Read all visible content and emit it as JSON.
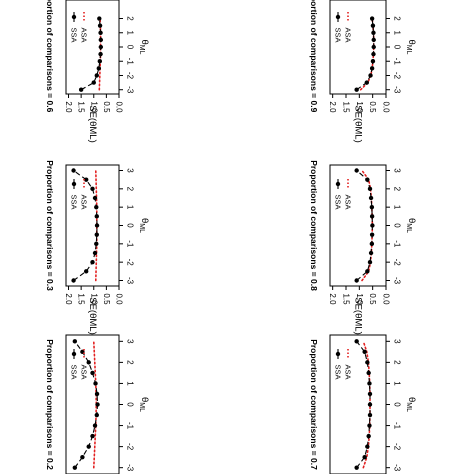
{
  "figure": {
    "orientation": "rotated-90-clockwise",
    "x_axis_label_base": "θ",
    "x_axis_label_sub": "ML",
    "y_axis_label": "SE(θML)",
    "legend_entries": [
      "SSA",
      "ASA"
    ]
  },
  "colors": {
    "ssa": "#000000",
    "asa": "#e32020",
    "frame": "#000000",
    "background": "#ffffff"
  },
  "chart_data": [
    {
      "type": "line",
      "title": "Proportion of comparisons = 0.2",
      "xlabel": "θML",
      "ylabel": "SE(θML)",
      "xlim": [
        -3.3,
        3.3
      ],
      "ylim": [
        0,
        2.1
      ],
      "x_ticks": [
        "-3",
        "-2",
        "-1",
        "0",
        "1",
        "2",
        "3"
      ],
      "y_ticks": [
        "0.0",
        "0.5",
        "1.0",
        "1.5",
        "2.0"
      ],
      "legend": "top-right",
      "grid": false,
      "series": [
        {
          "name": "SSA",
          "style": "black dots with dashed line",
          "x": [
            -3.0,
            -2.5,
            -2.0,
            -1.5,
            -1.0,
            -0.5,
            0.0,
            0.5,
            1.0,
            1.5,
            2.0,
            2.5,
            3.0
          ],
          "y": [
            1.75,
            1.45,
            1.2,
            1.05,
            0.95,
            0.88,
            0.85,
            0.87,
            0.93,
            1.05,
            1.2,
            1.45,
            1.75
          ]
        },
        {
          "name": "ASA",
          "style": "red dotted",
          "x": [
            -3.0,
            -2.5,
            -2.0,
            -1.5,
            -1.0,
            -0.5,
            0.0,
            0.5,
            1.0,
            1.5,
            2.0,
            2.5,
            3.0
          ],
          "y": [
            1.0,
            0.98,
            0.96,
            0.94,
            0.92,
            0.91,
            0.9,
            0.91,
            0.92,
            0.94,
            0.96,
            0.98,
            1.0
          ]
        }
      ]
    },
    {
      "type": "line",
      "title": "Proportion of comparisons = 0.3",
      "xlabel": "θML",
      "ylabel": "SE(θML)",
      "xlim": [
        -3.3,
        3.3
      ],
      "ylim": [
        0,
        2.1
      ],
      "x_ticks": [
        "-3",
        "-2",
        "-1",
        "0",
        "1",
        "2",
        "3"
      ],
      "y_ticks": [
        "0.0",
        "0.5",
        "1.0",
        "1.5",
        "2.0"
      ],
      "legend": "top-right",
      "grid": false,
      "series": [
        {
          "name": "SSA",
          "style": "black dots with dashed line",
          "x": [
            -3.0,
            -2.5,
            -2.0,
            -1.5,
            -1.0,
            -0.5,
            0.0,
            0.5,
            1.0,
            1.5,
            2.0,
            2.5,
            3.0
          ],
          "y": [
            1.8,
            1.3,
            1.05,
            0.95,
            0.9,
            0.88,
            0.87,
            0.88,
            0.9,
            0.95,
            1.05,
            1.3,
            1.8
          ]
        },
        {
          "name": "ASA",
          "style": "red dotted",
          "x": [
            -3.0,
            -2.5,
            -2.0,
            -1.5,
            -1.0,
            -0.5,
            0.0,
            0.5,
            1.0,
            1.5,
            2.0,
            2.5,
            3.0
          ],
          "y": [
            0.92,
            0.91,
            0.9,
            0.89,
            0.88,
            0.88,
            0.88,
            0.88,
            0.88,
            0.89,
            0.9,
            0.91,
            0.92
          ]
        }
      ]
    },
    {
      "type": "line",
      "title": "Proportion of comparisons = 0.6",
      "xlabel": "θML",
      "ylabel": "SE(θML)",
      "xlim": [
        -3.3,
        3.3
      ],
      "ylim": [
        0,
        2.1
      ],
      "x_ticks": [
        "-3",
        "-2",
        "-1",
        "0",
        "1",
        "2"
      ],
      "y_ticks": [
        "0.0",
        "0.5",
        "1.0",
        "1.5",
        "2.0"
      ],
      "legend": "top-right",
      "grid": false,
      "series": [
        {
          "name": "SSA",
          "style": "black dots with dashed line",
          "x": [
            -3.0,
            -2.5,
            -2.0,
            -1.5,
            -1.0,
            -0.5,
            0.0,
            0.5,
            1.0,
            1.5,
            2.0
          ],
          "y": [
            1.5,
            1.0,
            0.88,
            0.8,
            0.76,
            0.73,
            0.72,
            0.72,
            0.73,
            0.75,
            0.78
          ]
        },
        {
          "name": "ASA",
          "style": "red dotted",
          "x": [
            -3.0,
            -2.5,
            -2.0,
            -1.5,
            -1.0,
            -0.5,
            0.0,
            0.5,
            1.0,
            1.5,
            2.0
          ],
          "y": [
            0.78,
            0.77,
            0.76,
            0.75,
            0.74,
            0.73,
            0.73,
            0.73,
            0.73,
            0.74,
            0.75
          ]
        }
      ]
    },
    {
      "type": "line",
      "title": "Proportion of comparisons = 0.7",
      "xlabel": "θML",
      "ylabel": "SE(θML)",
      "xlim": [
        -3.3,
        3.3
      ],
      "ylim": [
        0,
        2.1
      ],
      "x_ticks": [
        "-3",
        "-2",
        "-1",
        "0",
        "1",
        "2",
        "3"
      ],
      "y_ticks": [
        "0.0",
        "0.5",
        "1.0",
        "1.5",
        "2.0"
      ],
      "legend": "top-right",
      "grid": false,
      "series": [
        {
          "name": "SSA",
          "style": "black dots with dashed line",
          "x": [
            -3.0,
            -2.5,
            -2.0,
            -1.5,
            -1.0,
            -0.5,
            0.0,
            0.5,
            1.0,
            1.5,
            2.0,
            2.5,
            3.0
          ],
          "y": [
            1.1,
            0.8,
            0.7,
            0.65,
            0.62,
            0.6,
            0.6,
            0.6,
            0.62,
            0.65,
            0.7,
            0.8,
            1.1
          ]
        },
        {
          "name": "ASA",
          "style": "red dotted",
          "x": [
            -3.0,
            -2.5,
            -2.0,
            -1.5,
            -1.0,
            -0.5,
            0.0,
            0.5,
            1.0,
            1.5,
            2.0,
            2.5,
            3.0
          ],
          "y": [
            0.85,
            0.72,
            0.66,
            0.63,
            0.61,
            0.6,
            0.6,
            0.6,
            0.61,
            0.63,
            0.66,
            0.72,
            0.85
          ]
        }
      ]
    },
    {
      "type": "line",
      "title": "Proportion of comparisons = 0.8",
      "xlabel": "θML",
      "ylabel": "SE(θML)",
      "xlim": [
        -3.3,
        3.3
      ],
      "ylim": [
        0,
        2.1
      ],
      "x_ticks": [
        "-3",
        "-2",
        "-1",
        "0",
        "1",
        "2",
        "3"
      ],
      "y_ticks": [
        "0.0",
        "0.5",
        "1.0",
        "1.5",
        "2.0"
      ],
      "legend": "top-right",
      "grid": false,
      "series": [
        {
          "name": "SSA",
          "style": "black dots with dashed line",
          "x": [
            -3.0,
            -2.5,
            -2.0,
            -1.5,
            -1.0,
            -0.5,
            0.0,
            0.5,
            1.0,
            1.5,
            2.0,
            2.5,
            3.0
          ],
          "y": [
            1.1,
            0.7,
            0.6,
            0.56,
            0.53,
            0.52,
            0.51,
            0.52,
            0.53,
            0.56,
            0.6,
            0.7,
            1.1
          ]
        },
        {
          "name": "ASA",
          "style": "red dotted",
          "x": [
            -3.0,
            -2.5,
            -2.0,
            -1.5,
            -1.0,
            -0.5,
            0.0,
            0.5,
            1.0,
            1.5,
            2.0,
            2.5,
            3.0
          ],
          "y": [
            0.9,
            0.65,
            0.58,
            0.55,
            0.53,
            0.52,
            0.51,
            0.52,
            0.53,
            0.55,
            0.58,
            0.65,
            0.9
          ]
        }
      ]
    },
    {
      "type": "line",
      "title": "Proportion of comparisons = 0.9",
      "xlabel": "θML",
      "ylabel": "SE(θML)",
      "xlim": [
        -3.3,
        3.3
      ],
      "ylim": [
        0,
        2.1
      ],
      "x_ticks": [
        "-3",
        "-2",
        "-1",
        "0",
        "1",
        "2"
      ],
      "y_ticks": [
        "0.0",
        "0.5",
        "1.0",
        "1.5",
        "2.0"
      ],
      "legend": "top-right",
      "grid": false,
      "series": [
        {
          "name": "SSA",
          "style": "black dots with dashed line",
          "x": [
            -3.0,
            -2.5,
            -2.0,
            -1.5,
            -1.0,
            -0.5,
            0.0,
            0.5,
            1.0,
            1.5,
            2.0
          ],
          "y": [
            1.1,
            0.72,
            0.58,
            0.52,
            0.49,
            0.47,
            0.46,
            0.46,
            0.47,
            0.49,
            0.52
          ]
        },
        {
          "name": "ASA",
          "style": "red dotted",
          "x": [
            -3.0,
            -2.5,
            -2.0,
            -1.5,
            -1.0,
            -0.5,
            0.0,
            0.5,
            1.0,
            1.5,
            2.0
          ],
          "y": [
            0.95,
            0.68,
            0.57,
            0.52,
            0.49,
            0.47,
            0.46,
            0.46,
            0.47,
            0.49,
            0.52
          ]
        }
      ]
    }
  ]
}
